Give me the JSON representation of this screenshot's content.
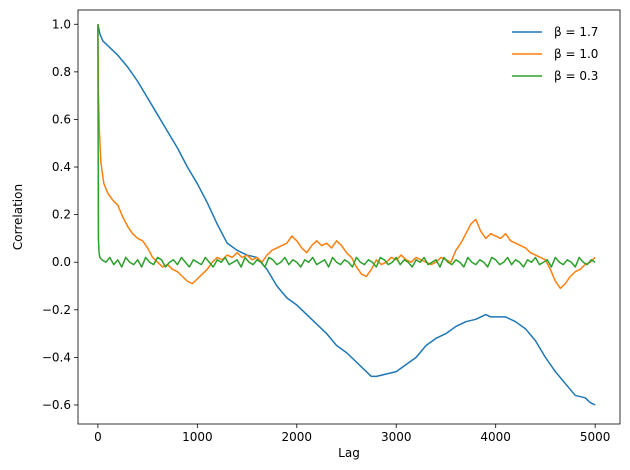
{
  "chart_data": {
    "type": "line",
    "xlabel": "Lag",
    "ylabel": "Correlation",
    "xlim": [
      -200,
      5250
    ],
    "ylim": [
      -0.68,
      1.06
    ],
    "xticks": [
      0,
      1000,
      2000,
      3000,
      4000,
      5000
    ],
    "yticks": [
      -0.6,
      -0.4,
      -0.2,
      0.0,
      0.2,
      0.4,
      0.6,
      0.8,
      1.0
    ],
    "ytick_labels": [
      "−0.6",
      "−0.4",
      "−0.2",
      "0.0",
      "0.2",
      "0.4",
      "0.6",
      "0.8",
      "1.0"
    ],
    "legend_position": "top-right",
    "grid": false,
    "series": [
      {
        "name": "β = 1.7",
        "color": "#1f77b4",
        "x": [
          0,
          20,
          50,
          100,
          200,
          300,
          400,
          500,
          600,
          700,
          800,
          900,
          1000,
          1100,
          1200,
          1300,
          1400,
          1500,
          1600,
          1700,
          1800,
          1900,
          2000,
          2100,
          2200,
          2300,
          2400,
          2500,
          2600,
          2700,
          2750,
          2800,
          2900,
          3000,
          3100,
          3200,
          3300,
          3400,
          3500,
          3600,
          3700,
          3800,
          3900,
          3950,
          4000,
          4100,
          4200,
          4300,
          4400,
          4500,
          4600,
          4700,
          4800,
          4900,
          4950,
          5000
        ],
        "y": [
          1.0,
          0.96,
          0.93,
          0.91,
          0.87,
          0.82,
          0.76,
          0.69,
          0.62,
          0.55,
          0.48,
          0.4,
          0.33,
          0.25,
          0.16,
          0.08,
          0.05,
          0.03,
          0.02,
          -0.03,
          -0.1,
          -0.15,
          -0.18,
          -0.22,
          -0.26,
          -0.3,
          -0.35,
          -0.38,
          -0.42,
          -0.46,
          -0.48,
          -0.48,
          -0.47,
          -0.46,
          -0.43,
          -0.4,
          -0.35,
          -0.32,
          -0.3,
          -0.27,
          -0.25,
          -0.24,
          -0.22,
          -0.23,
          -0.23,
          -0.23,
          -0.25,
          -0.28,
          -0.33,
          -0.4,
          -0.46,
          -0.51,
          -0.56,
          -0.57,
          -0.59,
          -0.6
        ]
      },
      {
        "name": "β = 1.0",
        "color": "#ff7f0e",
        "x": [
          0,
          5,
          15,
          30,
          60,
          100,
          150,
          200,
          250,
          300,
          350,
          400,
          450,
          500,
          550,
          600,
          650,
          700,
          750,
          800,
          850,
          900,
          950,
          1000,
          1050,
          1100,
          1150,
          1200,
          1250,
          1300,
          1350,
          1400,
          1450,
          1500,
          1550,
          1600,
          1650,
          1700,
          1750,
          1800,
          1850,
          1900,
          1950,
          2000,
          2050,
          2100,
          2150,
          2200,
          2250,
          2300,
          2350,
          2400,
          2450,
          2500,
          2550,
          2600,
          2650,
          2700,
          2750,
          2800,
          2850,
          2900,
          2950,
          3000,
          3050,
          3100,
          3150,
          3200,
          3250,
          3300,
          3350,
          3400,
          3450,
          3500,
          3550,
          3600,
          3650,
          3700,
          3750,
          3800,
          3850,
          3900,
          3950,
          4000,
          4050,
          4100,
          4150,
          4200,
          4250,
          4300,
          4350,
          4400,
          4450,
          4500,
          4550,
          4600,
          4650,
          4700,
          4750,
          4800,
          4850,
          4900,
          4950,
          5000
        ],
        "y": [
          1.0,
          0.72,
          0.55,
          0.42,
          0.33,
          0.29,
          0.26,
          0.24,
          0.19,
          0.15,
          0.12,
          0.1,
          0.09,
          0.06,
          0.02,
          0.0,
          -0.02,
          -0.01,
          -0.03,
          -0.04,
          -0.06,
          -0.08,
          -0.09,
          -0.07,
          -0.05,
          -0.03,
          0.0,
          0.02,
          0.01,
          0.03,
          0.02,
          0.04,
          0.02,
          0.03,
          0.01,
          0.02,
          0.0,
          0.03,
          0.05,
          0.06,
          0.07,
          0.08,
          0.11,
          0.09,
          0.06,
          0.04,
          0.07,
          0.09,
          0.07,
          0.08,
          0.06,
          0.09,
          0.07,
          0.04,
          0.02,
          -0.02,
          -0.05,
          -0.06,
          -0.03,
          0.01,
          -0.01,
          0.0,
          0.02,
          0.01,
          0.03,
          0.01,
          0.0,
          0.02,
          0.01,
          0.0,
          -0.01,
          0.0,
          0.02,
          0.01,
          0.0,
          0.05,
          0.08,
          0.12,
          0.16,
          0.18,
          0.13,
          0.1,
          0.12,
          0.11,
          0.1,
          0.12,
          0.09,
          0.08,
          0.07,
          0.06,
          0.04,
          0.03,
          0.02,
          0.01,
          -0.03,
          -0.08,
          -0.11,
          -0.09,
          -0.06,
          -0.04,
          -0.03,
          -0.01,
          0.0,
          0.02
        ]
      },
      {
        "name": "β = 0.3",
        "color": "#2ca02c",
        "x": [
          0,
          5,
          12,
          20,
          40,
          80,
          120,
          160,
          200,
          240,
          280,
          320,
          360,
          400,
          440,
          480,
          520,
          560,
          600,
          640,
          680,
          720,
          760,
          800,
          840,
          880,
          920,
          960,
          1000,
          1040,
          1080,
          1120,
          1160,
          1200,
          1240,
          1280,
          1320,
          1360,
          1400,
          1440,
          1480,
          1520,
          1560,
          1600,
          1640,
          1680,
          1720,
          1760,
          1800,
          1840,
          1880,
          1920,
          1960,
          2000,
          2040,
          2080,
          2120,
          2160,
          2200,
          2240,
          2280,
          2320,
          2360,
          2400,
          2440,
          2480,
          2520,
          2560,
          2600,
          2640,
          2680,
          2720,
          2760,
          2800,
          2840,
          2880,
          2920,
          2960,
          3000,
          3040,
          3080,
          3120,
          3160,
          3200,
          3240,
          3280,
          3320,
          3360,
          3400,
          3440,
          3480,
          3520,
          3560,
          3600,
          3640,
          3680,
          3720,
          3760,
          3800,
          3840,
          3880,
          3920,
          3960,
          4000,
          4040,
          4080,
          4120,
          4160,
          4200,
          4240,
          4280,
          4320,
          4360,
          4400,
          4440,
          4480,
          4520,
          4560,
          4600,
          4640,
          4680,
          4720,
          4760,
          4800,
          4840,
          4880,
          4920,
          4960,
          5000
        ],
        "y": [
          1.0,
          0.1,
          0.04,
          0.02,
          0.01,
          0.0,
          0.02,
          -0.01,
          0.01,
          -0.02,
          0.02,
          0.0,
          -0.01,
          0.01,
          -0.02,
          0.02,
          0.0,
          -0.01,
          0.02,
          0.01,
          -0.02,
          0.0,
          0.01,
          -0.01,
          0.02,
          0.0,
          -0.02,
          0.01,
          0.0,
          -0.01,
          0.02,
          0.0,
          -0.02,
          0.01,
          0.0,
          0.02,
          -0.01,
          0.0,
          0.01,
          -0.02,
          0.02,
          0.0,
          -0.01,
          0.01,
          0.0,
          -0.02,
          0.02,
          0.01,
          -0.01,
          0.0,
          0.02,
          -0.01,
          0.01,
          0.0,
          -0.02,
          0.01,
          0.0,
          0.02,
          -0.01,
          0.0,
          0.01,
          -0.02,
          0.02,
          0.0,
          -0.01,
          0.01,
          0.0,
          -0.02,
          0.02,
          0.0,
          -0.01,
          0.01,
          0.0,
          -0.02,
          0.02,
          0.01,
          -0.01,
          0.0,
          0.02,
          -0.01,
          0.01,
          0.0,
          -0.02,
          0.01,
          0.0,
          0.02,
          -0.01,
          0.0,
          0.01,
          -0.02,
          0.02,
          0.0,
          -0.01,
          0.01,
          0.0,
          -0.02,
          0.02,
          0.0,
          -0.01,
          0.01,
          0.0,
          -0.02,
          0.02,
          0.01,
          -0.01,
          0.0,
          0.02,
          -0.01,
          0.01,
          0.0,
          -0.02,
          0.01,
          0.0,
          0.02,
          -0.01,
          0.0,
          0.01,
          -0.02,
          0.02,
          0.0,
          -0.01,
          0.01,
          0.0,
          -0.02,
          0.02,
          0.0,
          -0.01,
          0.01,
          0.0
        ]
      }
    ]
  }
}
